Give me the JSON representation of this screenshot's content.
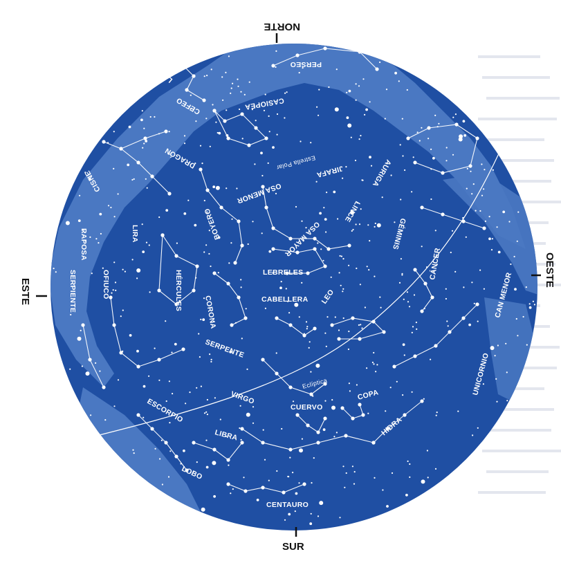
{
  "directions": {
    "north": "NORTE",
    "south": "SUR",
    "east": "ESTE",
    "west": "OESTE"
  },
  "constellations": {
    "perseo": "PERSEO",
    "lagarto": "LAGARTO",
    "cefeo": "CEFEO",
    "casiopea": "CASIOPEA",
    "cisne": "CISNE",
    "zorra": "RAPOSA",
    "serpiente": "SERPIENTE",
    "lira": "LIRA",
    "dragon": "DRAGÓN",
    "osa_menor": "OSA MENOR",
    "estrella_polar": "Estrella Polar",
    "jirafa": "JIRAFA",
    "auriga": "AURIGA",
    "lince": "LINCE",
    "geminis": "GÉMINIS",
    "osa_mayor": "OSA MAYOR",
    "boyero": "BOYERO",
    "hercules": "HÉRCULES",
    "ofiuco": "OFIUCO",
    "corona": "CORONA",
    "lebreles": "LEBRELES",
    "cabellera": "CABELLERA",
    "leo": "LEO",
    "cancer": "CÁNCER",
    "can_menor": "CAN MENOR",
    "serpente": "SERPENTE",
    "ecliptica": "Eclíptica",
    "virgo": "VIRGO",
    "copa": "COPA",
    "cuervo": "CUERVO",
    "unicornio": "UNICORNIO",
    "escorpio": "ESCORPIO",
    "libra": "LIBRA",
    "hidra": "HIDRA",
    "lobo": "LOBO",
    "centauro": "CENTAURO"
  },
  "colors": {
    "sky": "#1f4fa3",
    "milky_way": "#4a78c2",
    "stars": "#ffffff"
  }
}
